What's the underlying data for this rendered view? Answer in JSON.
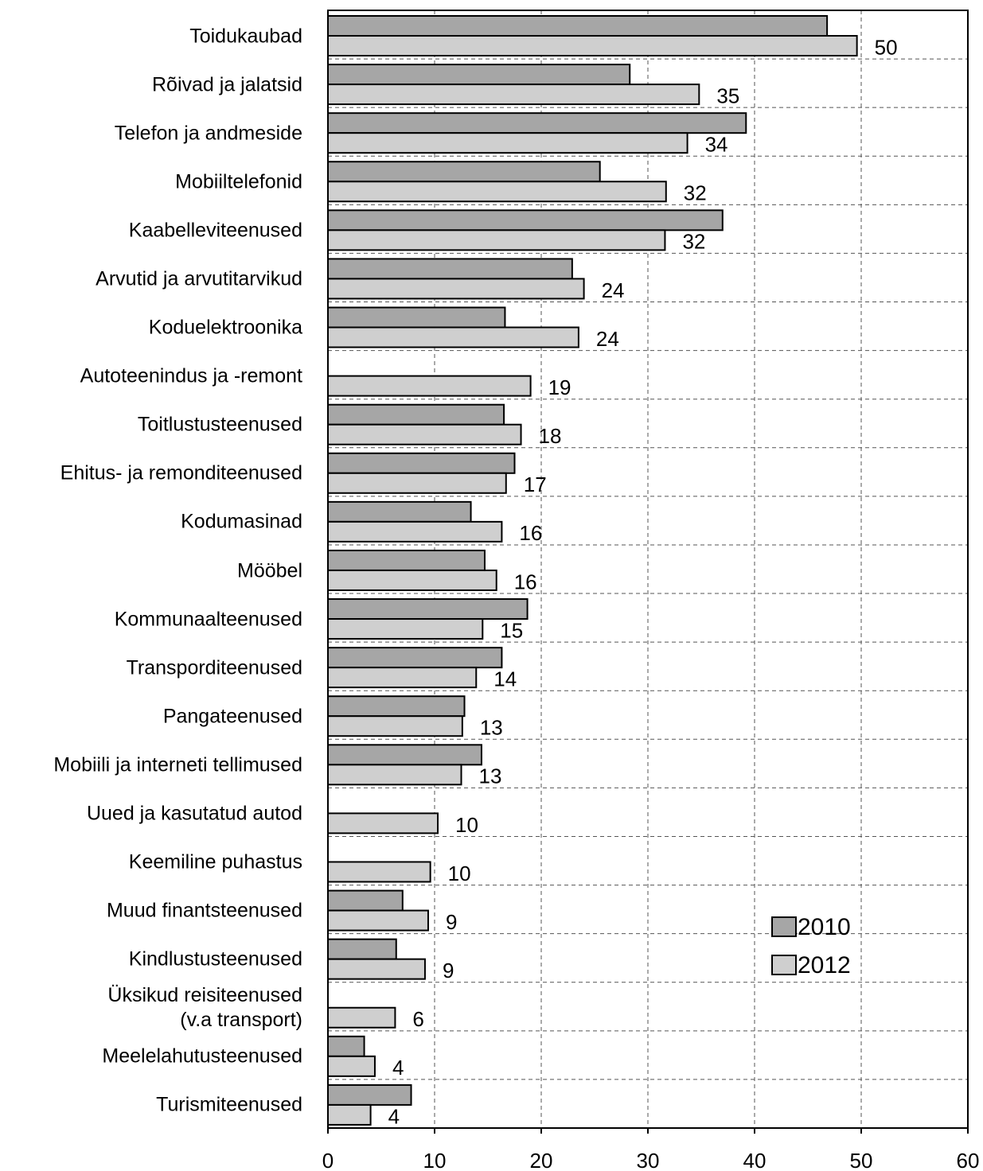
{
  "chart_data": {
    "type": "barh",
    "categories": [
      "Toidukaubad",
      "Rõivad ja jalatsid",
      "Telefon ja andmeside",
      "Mobiiltelefonid",
      "Kaabelleviteenused",
      "Arvutid ja arvutitarvikud",
      "Koduelektroonika",
      "Autoteenindus ja -remont",
      "Toitlustusteenused",
      "Ehitus- ja remonditeenused",
      "Kodumasinad",
      "Mööbel",
      "Kommunaalteenused",
      "Transporditeenused",
      "Pangateenused",
      "Mobiili ja interneti tellimused",
      "Uued ja kasutatud autod",
      "Keemiline puhastus",
      "Muud finantsteenused",
      "Kindlustusteenused",
      "Üksikud reisiteenused\n(v.a transport)",
      "Meelelahutusteenused",
      "Turismiteenused"
    ],
    "series": [
      {
        "name": "2010",
        "color": "#a6a6a6",
        "values": [
          46.8,
          28.3,
          39.2,
          25.5,
          37.0,
          22.9,
          16.6,
          null,
          16.5,
          17.5,
          13.4,
          14.7,
          18.7,
          16.3,
          12.8,
          14.4,
          null,
          null,
          7.0,
          6.4,
          null,
          3.4,
          7.8
        ]
      },
      {
        "name": "2012",
        "color": "#cfcfcf",
        "values": [
          49.6,
          34.8,
          33.7,
          31.7,
          31.6,
          24.0,
          23.5,
          19.0,
          18.1,
          16.7,
          16.3,
          15.8,
          14.5,
          13.9,
          12.6,
          12.5,
          10.3,
          9.6,
          9.4,
          9.1,
          6.3,
          4.4,
          4.0
        ],
        "value_labels": [
          "50",
          "35",
          "34",
          "32",
          "32",
          "24",
          "24",
          "19",
          "18",
          "17",
          "16",
          "16",
          "15",
          "14",
          "13",
          "13",
          "10",
          "10",
          "9",
          "9",
          "6",
          "4",
          "4"
        ]
      }
    ],
    "xlim": [
      0,
      60
    ],
    "xticks": [
      0,
      10,
      20,
      30,
      40,
      50,
      60
    ],
    "grid": true,
    "legend": "lower right"
  }
}
